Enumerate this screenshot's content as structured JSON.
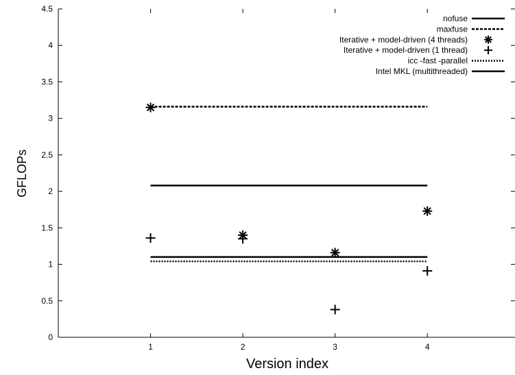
{
  "chart_data": {
    "type": "scatter",
    "xlabel": "Version index",
    "ylabel": "GFLOPs",
    "xlim": [
      0,
      4.95
    ],
    "ylim": [
      0,
      4.5
    ],
    "x_ticks": [
      1,
      2,
      3,
      4
    ],
    "x_tick_labels": [
      "1",
      "2",
      "3",
      "4"
    ],
    "y_ticks": [
      0,
      0.5,
      1,
      1.5,
      2,
      2.5,
      3,
      3.5,
      4,
      4.5
    ],
    "y_tick_labels": [
      "0",
      "0.5",
      "1",
      "1.5",
      "2",
      "2.5",
      "3",
      "3.5",
      "4",
      "4.5"
    ],
    "grid": false,
    "legend_position": "top-right",
    "series": [
      {
        "name": "nofuse",
        "kind": "hline",
        "style": "solid",
        "x": [
          1,
          4
        ],
        "y": 2.08
      },
      {
        "name": "maxfuse",
        "kind": "hline",
        "style": "dashed",
        "x": [
          1,
          4
        ],
        "y": 3.16
      },
      {
        "name": "Iterative + model-driven (4 threads)",
        "kind": "points",
        "marker": "asterisk",
        "points": [
          {
            "x": 1,
            "y": 3.15
          },
          {
            "x": 2,
            "y": 1.4
          },
          {
            "x": 3,
            "y": 1.16
          },
          {
            "x": 4,
            "y": 1.73
          }
        ]
      },
      {
        "name": "Iterative + model-driven (1 thread)",
        "kind": "points",
        "marker": "plus",
        "points": [
          {
            "x": 1,
            "y": 1.36
          },
          {
            "x": 2,
            "y": 1.35
          },
          {
            "x": 3,
            "y": 0.38
          },
          {
            "x": 4,
            "y": 0.91
          }
        ]
      },
      {
        "name": "icc -fast -parallel",
        "kind": "hline",
        "style": "dotted",
        "x": [
          1,
          4
        ],
        "y": 1.04
      },
      {
        "name": "Intel MKL (multithreaded)",
        "kind": "hline",
        "style": "solid",
        "x": [
          1,
          4
        ],
        "y": 1.1
      }
    ]
  }
}
